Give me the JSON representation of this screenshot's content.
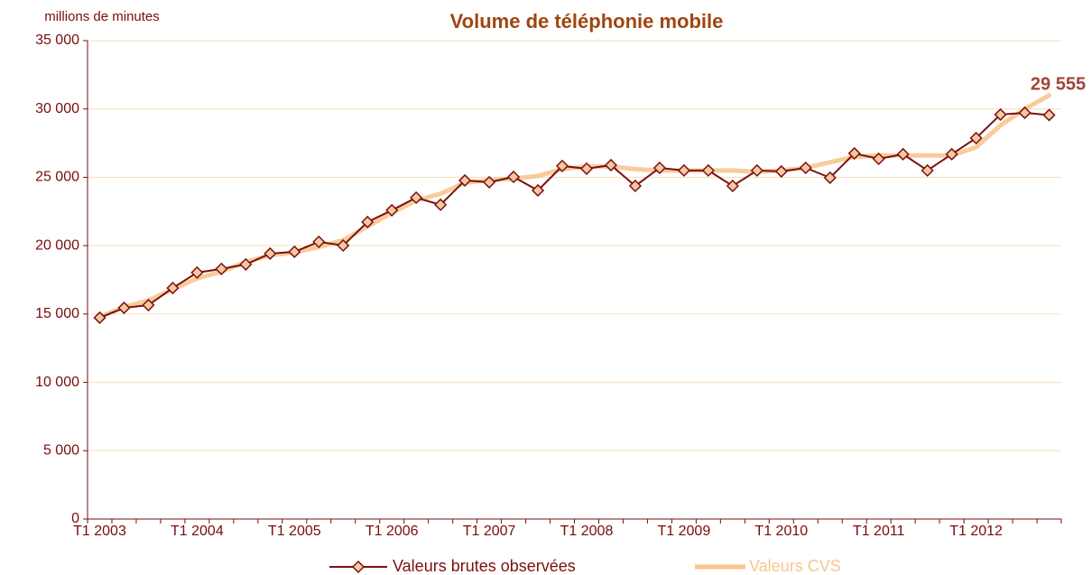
{
  "chart_data": {
    "type": "line",
    "title": "Volume de téléphonie mobile",
    "y_axis_label": "millions de minutes",
    "categories": [
      "T1 2003",
      null,
      null,
      null,
      "T1 2004",
      null,
      null,
      null,
      "T1 2005",
      null,
      null,
      null,
      "T1 2006",
      null,
      null,
      null,
      "T1 2007",
      null,
      null,
      null,
      "T1 2008",
      null,
      null,
      null,
      "T1 2009",
      null,
      null,
      null,
      "T1 2010",
      null,
      null,
      null,
      "T1 2011",
      null,
      null,
      null,
      "T1 2012",
      null,
      null,
      null
    ],
    "series": [
      {
        "name": "Valeurs brutes observées",
        "color": "#7b1010",
        "marker_fill": "#f5c9a0",
        "values": [
          14730,
          15450,
          15650,
          16900,
          18030,
          18300,
          18630,
          19420,
          19550,
          20280,
          20010,
          21730,
          22590,
          23510,
          22990,
          24770,
          24640,
          25030,
          24040,
          25830,
          25630,
          25890,
          24370,
          25690,
          25500,
          25500,
          24370,
          25500,
          25430,
          25690,
          24970,
          26750,
          26350,
          26690,
          25500,
          26690,
          27870,
          29590,
          29720,
          29555
        ],
        "value_labels": [
          null,
          null,
          null,
          null,
          null,
          null,
          null,
          null,
          null,
          null,
          null,
          null,
          null,
          null,
          null,
          null,
          null,
          null,
          null,
          null,
          null,
          null,
          null,
          null,
          null,
          null,
          null,
          null,
          null,
          null,
          null,
          null,
          null,
          null,
          null,
          null,
          null,
          null,
          null,
          "29 555"
        ]
      },
      {
        "name": "Valeurs CVS",
        "color": "#f9c58f",
        "values": [
          14800,
          15500,
          16000,
          16800,
          17600,
          18100,
          18800,
          19300,
          19500,
          19900,
          20400,
          21400,
          22400,
          23300,
          23800,
          24600,
          24800,
          24900,
          25100,
          25600,
          25800,
          25800,
          25600,
          25500,
          25500,
          25500,
          25500,
          25400,
          25500,
          25700,
          26100,
          26500,
          26600,
          26600,
          26600,
          26600,
          27200,
          28800,
          30000,
          31000
        ]
      }
    ],
    "ylim": [
      0,
      35000
    ],
    "yticks": [
      0,
      {
        "value": 5000,
        "label": "5 000"
      },
      {
        "value": 10000,
        "label": "10 000"
      },
      {
        "value": 15000,
        "label": "15 000"
      },
      {
        "value": 20000,
        "label": "20 000"
      },
      {
        "value": 25000,
        "label": "25 000"
      },
      {
        "value": 30000,
        "label": "30 000"
      },
      {
        "value": 35000,
        "label": "35 000"
      }
    ],
    "grid": true,
    "legend": "bottom"
  }
}
